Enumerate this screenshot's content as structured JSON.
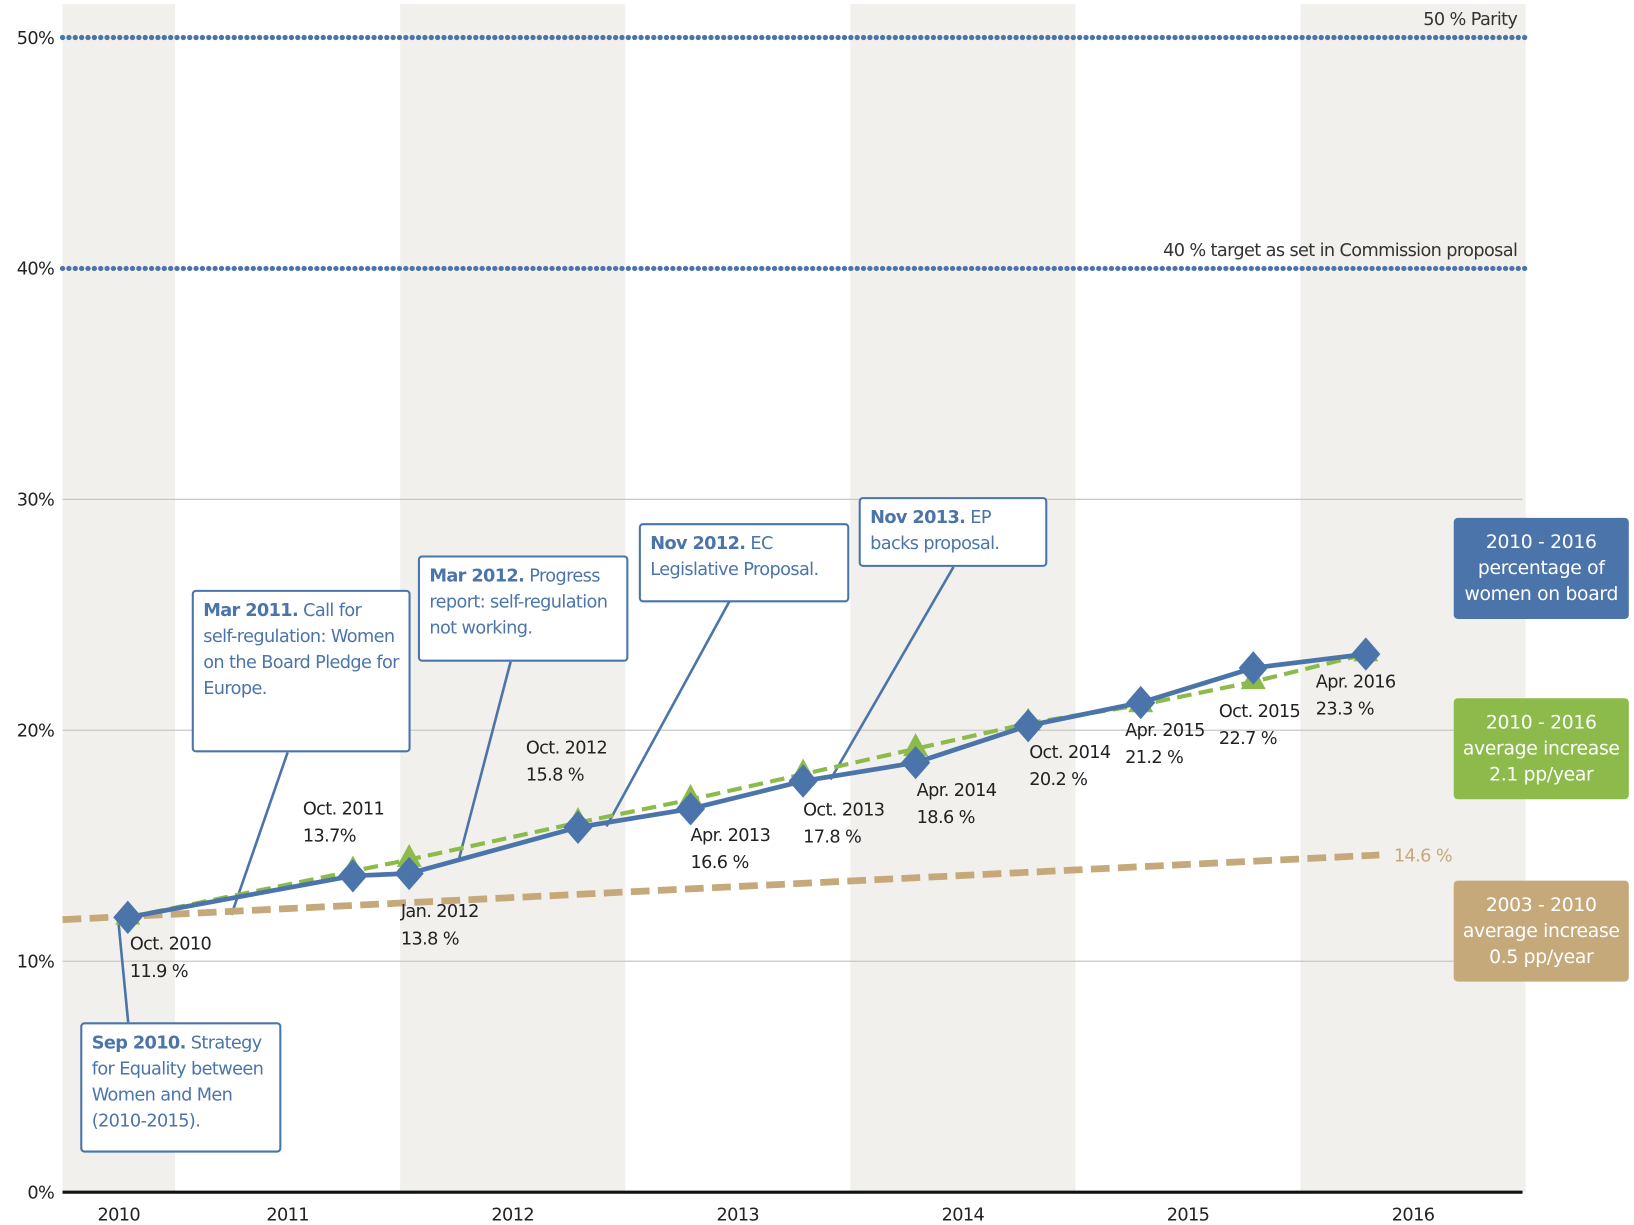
{
  "chart_data": {
    "type": "line",
    "xlim": [
      2010.5,
      2017
    ],
    "xticks": [
      {
        "value": 2010.75,
        "label": "2010"
      },
      {
        "value": 2011.5,
        "label": "2011"
      },
      {
        "value": 2012.5,
        "label": "2012"
      },
      {
        "value": 2013.5,
        "label": "2013"
      },
      {
        "value": 2014.5,
        "label": "2014"
      },
      {
        "value": 2015.5,
        "label": "2015"
      },
      {
        "value": 2016.5,
        "label": "2016"
      }
    ],
    "ylim": [
      0,
      50
    ],
    "yticks": [
      {
        "value": 0,
        "label": "0%"
      },
      {
        "value": 10,
        "label": "10%"
      },
      {
        "value": 20,
        "label": "20%"
      },
      {
        "value": 30,
        "label": "30%"
      },
      {
        "value": 40,
        "label": "40%"
      },
      {
        "value": 50,
        "label": "50%"
      }
    ],
    "grid": true,
    "reference_lines": [
      {
        "value": 50,
        "label": "50 % Parity"
      },
      {
        "value": 40,
        "label": "40 % target as set in Commission proposal"
      }
    ],
    "series": [
      {
        "name": "2003 - 2010 average increase 0.5 pp/year",
        "color": "#c6a97b",
        "style": "dashed",
        "x": [
          2010.5,
          2016.35
        ],
        "values": [
          11.8,
          14.6
        ],
        "value_labels": [
          null,
          "14.6 %"
        ]
      },
      {
        "name": "2010 - 2016 average increase 2.1 pp/year",
        "color": "#8cbb4c",
        "style": "dashed",
        "marker": "triangle",
        "x": [
          2010.79,
          2011.79,
          2012.04,
          2012.79,
          2013.29,
          2013.79,
          2014.29,
          2014.79,
          2015.29,
          2015.79,
          2016.29
        ],
        "values": [
          11.9,
          13.9,
          14.4,
          16.0,
          17.0,
          18.1,
          19.2,
          20.3,
          21.1,
          22.1,
          23.3
        ]
      },
      {
        "name": "2010 - 2016 percentage of women on board",
        "color": "#4b75aa",
        "style": "solid",
        "marker": "diamond",
        "x": [
          2010.79,
          2011.79,
          2012.04,
          2012.79,
          2013.29,
          2013.79,
          2014.29,
          2014.79,
          2015.29,
          2015.79,
          2016.29
        ],
        "values": [
          11.9,
          13.7,
          13.8,
          15.8,
          16.6,
          17.8,
          18.6,
          20.2,
          21.2,
          22.7,
          23.3
        ],
        "point_labels": [
          "Oct. 2010",
          "Oct. 2011",
          "Jan. 2012",
          "Oct. 2012",
          "Apr. 2013",
          "Oct. 2013",
          "Apr. 2014",
          "Oct. 2014",
          "Apr. 2015",
          "Oct. 2015",
          "Apr. 2016"
        ],
        "value_labels": [
          "11.9 %",
          "13.7%",
          "13.8 %",
          "15.8 %",
          "16.6 %",
          "17.8 %",
          "18.6 %",
          "20.2 %",
          "21.2 %",
          "22.7 %",
          "23.3 %"
        ]
      }
    ],
    "annotations": [
      {
        "date": "Sep 2010.",
        "text": "Strategy for Equality between Women and Men (2010-2015)."
      },
      {
        "date": "Mar 2011.",
        "text": "Call for self-regulation: Women on the Board Pledge for Europe."
      },
      {
        "date": "Mar 2012.",
        "text": "Progress report: self-regulation not working."
      },
      {
        "date": "Nov 2012.",
        "text": "EC Legislative Proposal."
      },
      {
        "date": "Nov 2013.",
        "text": "EP backs proposal."
      }
    ]
  }
}
